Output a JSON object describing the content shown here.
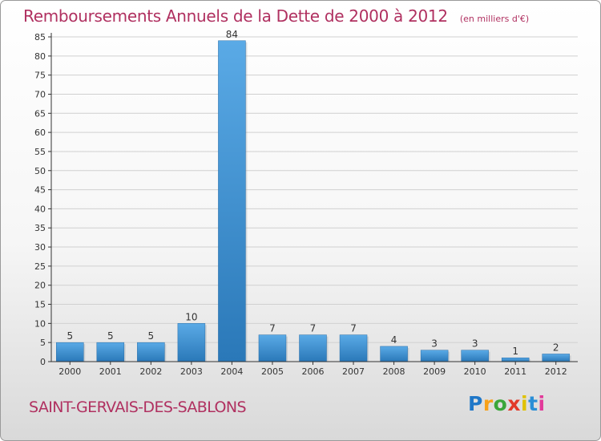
{
  "title": "Remboursements Annuels de la Dette de 2000 à 2012",
  "unit": "(en milliers d'€)",
  "commune": "SAINT-GERVAIS-DES-SABLONS",
  "logo": {
    "letters": [
      "P",
      "r",
      "o",
      "x",
      "i",
      "t",
      "i"
    ],
    "colors": [
      "#1f77c8",
      "#f7a11a",
      "#3aa63a",
      "#e23a2a",
      "#e0c200",
      "#2a8fd6",
      "#e23a9a"
    ]
  },
  "colors": {
    "bar": "#3d8fd3",
    "title": "#b03060",
    "axis": "#333333",
    "grid": "#d0d0d0"
  },
  "chart_data": {
    "type": "bar",
    "title": "Remboursements Annuels de la Dette de 2000 à 2012",
    "xlabel": "",
    "ylabel": "",
    "categories": [
      "2000",
      "2001",
      "2002",
      "2003",
      "2004",
      "2005",
      "2006",
      "2007",
      "2008",
      "2009",
      "2010",
      "2011",
      "2012"
    ],
    "values": [
      5,
      5,
      5,
      10,
      84,
      7,
      7,
      7,
      4,
      3,
      3,
      1,
      2
    ],
    "ylim": [
      0,
      85
    ],
    "yticks": [
      0,
      5,
      10,
      15,
      20,
      25,
      30,
      35,
      40,
      45,
      50,
      55,
      60,
      65,
      70,
      75,
      80,
      85
    ],
    "grid": true
  }
}
